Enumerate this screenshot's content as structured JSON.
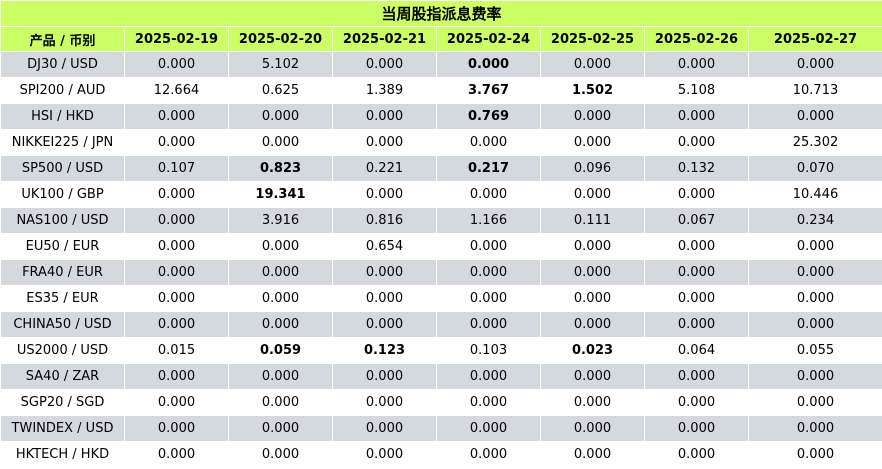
{
  "title": "当周股指派息费率",
  "headers": [
    "产品 / 币别",
    "2025-02-19",
    "2025-02-20",
    "2025-02-21",
    "2025-02-24",
    "2025-02-25",
    "2025-02-26",
    "2025-02-27"
  ],
  "rows": [
    {
      "product": "DJ30 / USD",
      "values": [
        "0.000",
        "5.102",
        "0.000",
        "0.000",
        "0.000",
        "0.000",
        "0.000"
      ],
      "bold": [
        3
      ]
    },
    {
      "product": "SPI200 / AUD",
      "values": [
        "12.664",
        "0.625",
        "1.389",
        "3.767",
        "1.502",
        "5.108",
        "10.713"
      ],
      "bold": [
        3,
        4
      ]
    },
    {
      "product": "HSI / HKD",
      "values": [
        "0.000",
        "0.000",
        "0.000",
        "0.769",
        "0.000",
        "0.000",
        "0.000"
      ],
      "bold": [
        3
      ]
    },
    {
      "product": "NIKKEI225 / JPN",
      "values": [
        "0.000",
        "0.000",
        "0.000",
        "0.000",
        "0.000",
        "0.000",
        "25.302"
      ],
      "bold": []
    },
    {
      "product": "SP500 / USD",
      "values": [
        "0.107",
        "0.823",
        "0.221",
        "0.217",
        "0.096",
        "0.132",
        "0.070"
      ],
      "bold": [
        1,
        3
      ]
    },
    {
      "product": "UK100 / GBP",
      "values": [
        "0.000",
        "19.341",
        "0.000",
        "0.000",
        "0.000",
        "0.000",
        "10.446"
      ],
      "bold": [
        1
      ]
    },
    {
      "product": "NAS100 / USD",
      "values": [
        "0.000",
        "3.916",
        "0.816",
        "1.166",
        "0.111",
        "0.067",
        "0.234"
      ],
      "bold": []
    },
    {
      "product": "EU50 / EUR",
      "values": [
        "0.000",
        "0.000",
        "0.654",
        "0.000",
        "0.000",
        "0.000",
        "0.000"
      ],
      "bold": []
    },
    {
      "product": "FRA40 / EUR",
      "values": [
        "0.000",
        "0.000",
        "0.000",
        "0.000",
        "0.000",
        "0.000",
        "0.000"
      ],
      "bold": []
    },
    {
      "product": "ES35 / EUR",
      "values": [
        "0.000",
        "0.000",
        "0.000",
        "0.000",
        "0.000",
        "0.000",
        "0.000"
      ],
      "bold": []
    },
    {
      "product": "CHINA50 / USD",
      "values": [
        "0.000",
        "0.000",
        "0.000",
        "0.000",
        "0.000",
        "0.000",
        "0.000"
      ],
      "bold": []
    },
    {
      "product": "US2000 / USD",
      "values": [
        "0.015",
        "0.059",
        "0.123",
        "0.103",
        "0.023",
        "0.064",
        "0.055"
      ],
      "bold": [
        1,
        2,
        4
      ]
    },
    {
      "product": "SA40 / ZAR",
      "values": [
        "0.000",
        "0.000",
        "0.000",
        "0.000",
        "0.000",
        "0.000",
        "0.000"
      ],
      "bold": []
    },
    {
      "product": "SGP20 / SGD",
      "values": [
        "0.000",
        "0.000",
        "0.000",
        "0.000",
        "0.000",
        "0.000",
        "0.000"
      ],
      "bold": []
    },
    {
      "product": "TWINDEX / USD",
      "values": [
        "0.000",
        "0.000",
        "0.000",
        "0.000",
        "0.000",
        "0.000",
        "0.000"
      ],
      "bold": []
    },
    {
      "product": "HKTECH / HKD",
      "values": [
        "0.000",
        "0.000",
        "0.000",
        "0.000",
        "0.000",
        "0.000",
        "0.000"
      ],
      "bold": []
    }
  ]
}
